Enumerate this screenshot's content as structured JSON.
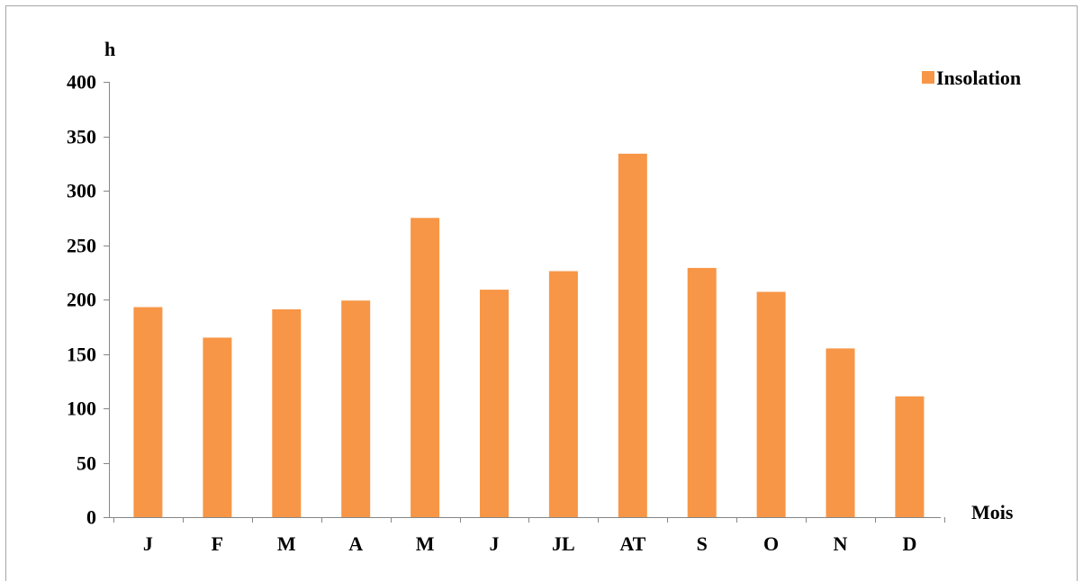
{
  "chart_data": {
    "type": "bar",
    "categories": [
      "J",
      "F",
      "M",
      "A",
      "M",
      "J",
      "JL",
      "AT",
      "S",
      "O",
      "N",
      "D"
    ],
    "series": [
      {
        "name": "Insolation",
        "values": [
          193,
          165,
          191,
          199,
          275,
          209,
          226,
          334,
          229,
          207,
          155,
          111
        ],
        "color": "#F79646"
      }
    ],
    "ylabel": "h",
    "xlabel": "Mois",
    "ylim": [
      0,
      400
    ],
    "yticks": [
      0,
      50,
      100,
      150,
      200,
      250,
      300,
      350,
      400
    ],
    "grid": false,
    "legend_position": "top-right"
  }
}
